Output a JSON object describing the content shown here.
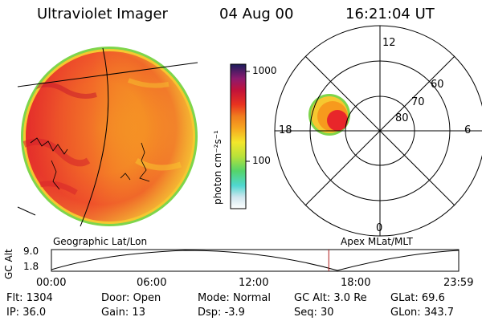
{
  "header": {
    "instrument": "Ultraviolet Imager",
    "date": "04 Aug 00",
    "time": "16:21:04 UT"
  },
  "colorbar": {
    "unit_label": "photon cm⁻²s⁻¹",
    "ticks": [
      "1000",
      "100"
    ]
  },
  "polar_plot": {
    "mlt_labels": [
      "12",
      "18",
      "6",
      "0"
    ],
    "mlat_labels": [
      "60",
      "70",
      "80"
    ]
  },
  "panel_labels": {
    "left": "Geographic Lat/Lon",
    "right": "Apex MLat/MLT"
  },
  "altitude_plot": {
    "ylabel": "GC Alt",
    "yticks": [
      "9.0",
      "1.8"
    ],
    "xticks": [
      "00:00",
      "06:00",
      "12:00",
      "18:00",
      "23:59"
    ],
    "current_time_fraction": 0.681
  },
  "status": {
    "row1": [
      {
        "key": "Flt:",
        "value": "1304"
      },
      {
        "key": "Door:",
        "value": "Open"
      },
      {
        "key": "Mode:",
        "value": "Normal"
      },
      {
        "key": "GC Alt:",
        "value": "3.0 Re"
      },
      {
        "key": "GLat:",
        "value": "69.6"
      }
    ],
    "row2": [
      {
        "key": "IP:",
        "value": "36.0"
      },
      {
        "key": "Gain:",
        "value": "13"
      },
      {
        "key": "Dsp:",
        "value": "-3.9"
      },
      {
        "key": "Seq:",
        "value": "30"
      },
      {
        "key": "GLon:",
        "value": "343.7"
      }
    ]
  },
  "colors": {
    "aurora_high": "#e8262a",
    "aurora_mid": "#f79a1d",
    "aurora_low": "#f6c830",
    "edge_green": "#7ed54b",
    "time_marker": "#b01a1a"
  }
}
